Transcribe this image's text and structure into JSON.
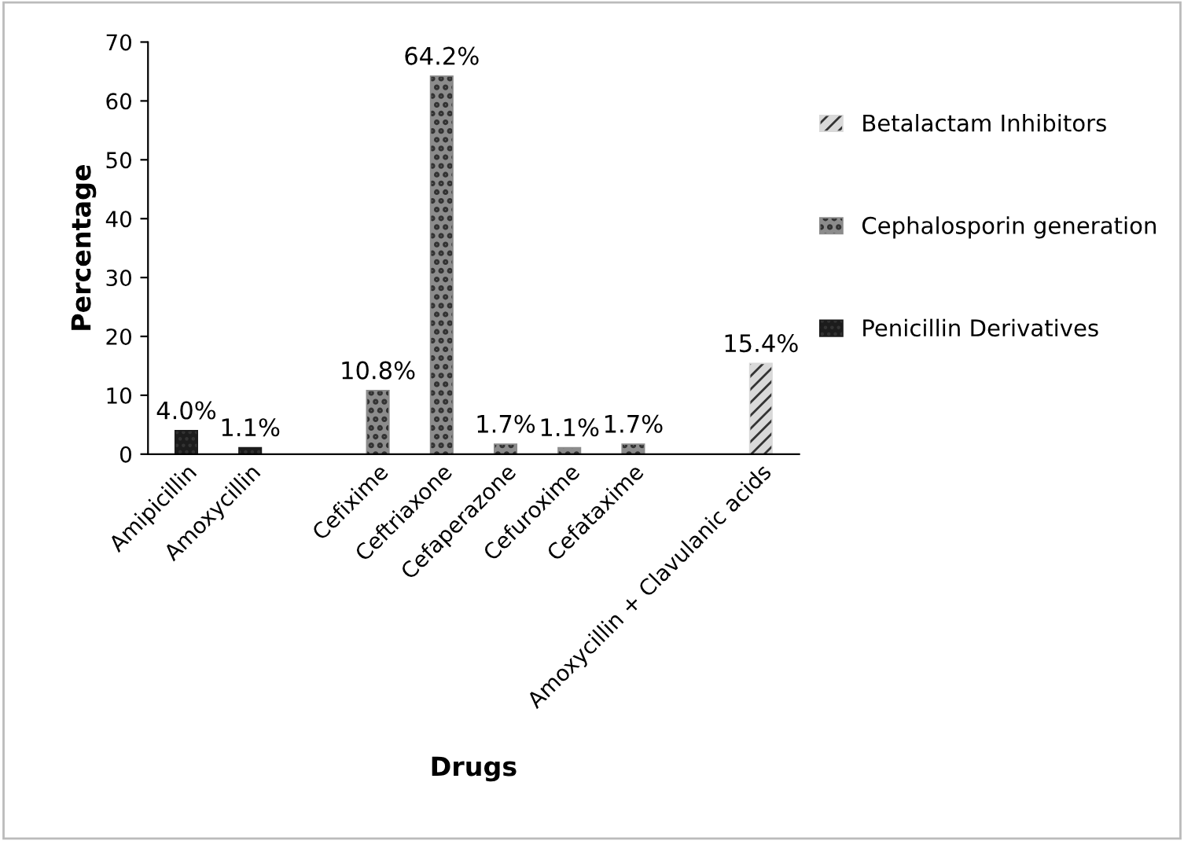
{
  "chart_data": {
    "type": "bar",
    "xlabel": "Drugs",
    "ylabel": "Percentage",
    "categories": [
      "Amipicillin",
      "Amoxycillin",
      null,
      "Cefixime",
      "Ceftriaxone",
      "Cefaperazone",
      "Cefuroxime",
      "Cefataxime",
      null,
      "Amoxycillin + Clavulanic acids"
    ],
    "series": [
      {
        "name": "Penicillin Derivatives",
        "color": "#1c1c1c",
        "values": [
          4.0,
          1.1,
          null,
          null,
          null,
          null,
          null,
          null,
          null,
          null
        ],
        "value_labels": [
          "4.0%",
          "1.1%",
          null,
          null,
          null,
          null,
          null,
          null,
          null,
          null
        ]
      },
      {
        "name": "Cephalosporin generation",
        "color": "#8c8c8c",
        "values": [
          null,
          null,
          null,
          10.8,
          64.2,
          1.7,
          1.1,
          1.7,
          null,
          null
        ],
        "value_labels": [
          null,
          null,
          null,
          "10.8%",
          "64.2%",
          "1.7%",
          "1.1%",
          "1.7%",
          null,
          null
        ]
      },
      {
        "name": "Betalactam Inhibitors",
        "color": "#d9d9d9",
        "values": [
          null,
          null,
          null,
          null,
          null,
          null,
          null,
          null,
          null,
          15.4
        ],
        "value_labels": [
          null,
          null,
          null,
          null,
          null,
          null,
          null,
          null,
          null,
          "15.4%"
        ]
      }
    ],
    "ylim": [
      0,
      70
    ],
    "yticks": [
      0,
      10,
      20,
      30,
      40,
      50,
      60,
      70
    ],
    "grid": false,
    "legend": "right"
  }
}
